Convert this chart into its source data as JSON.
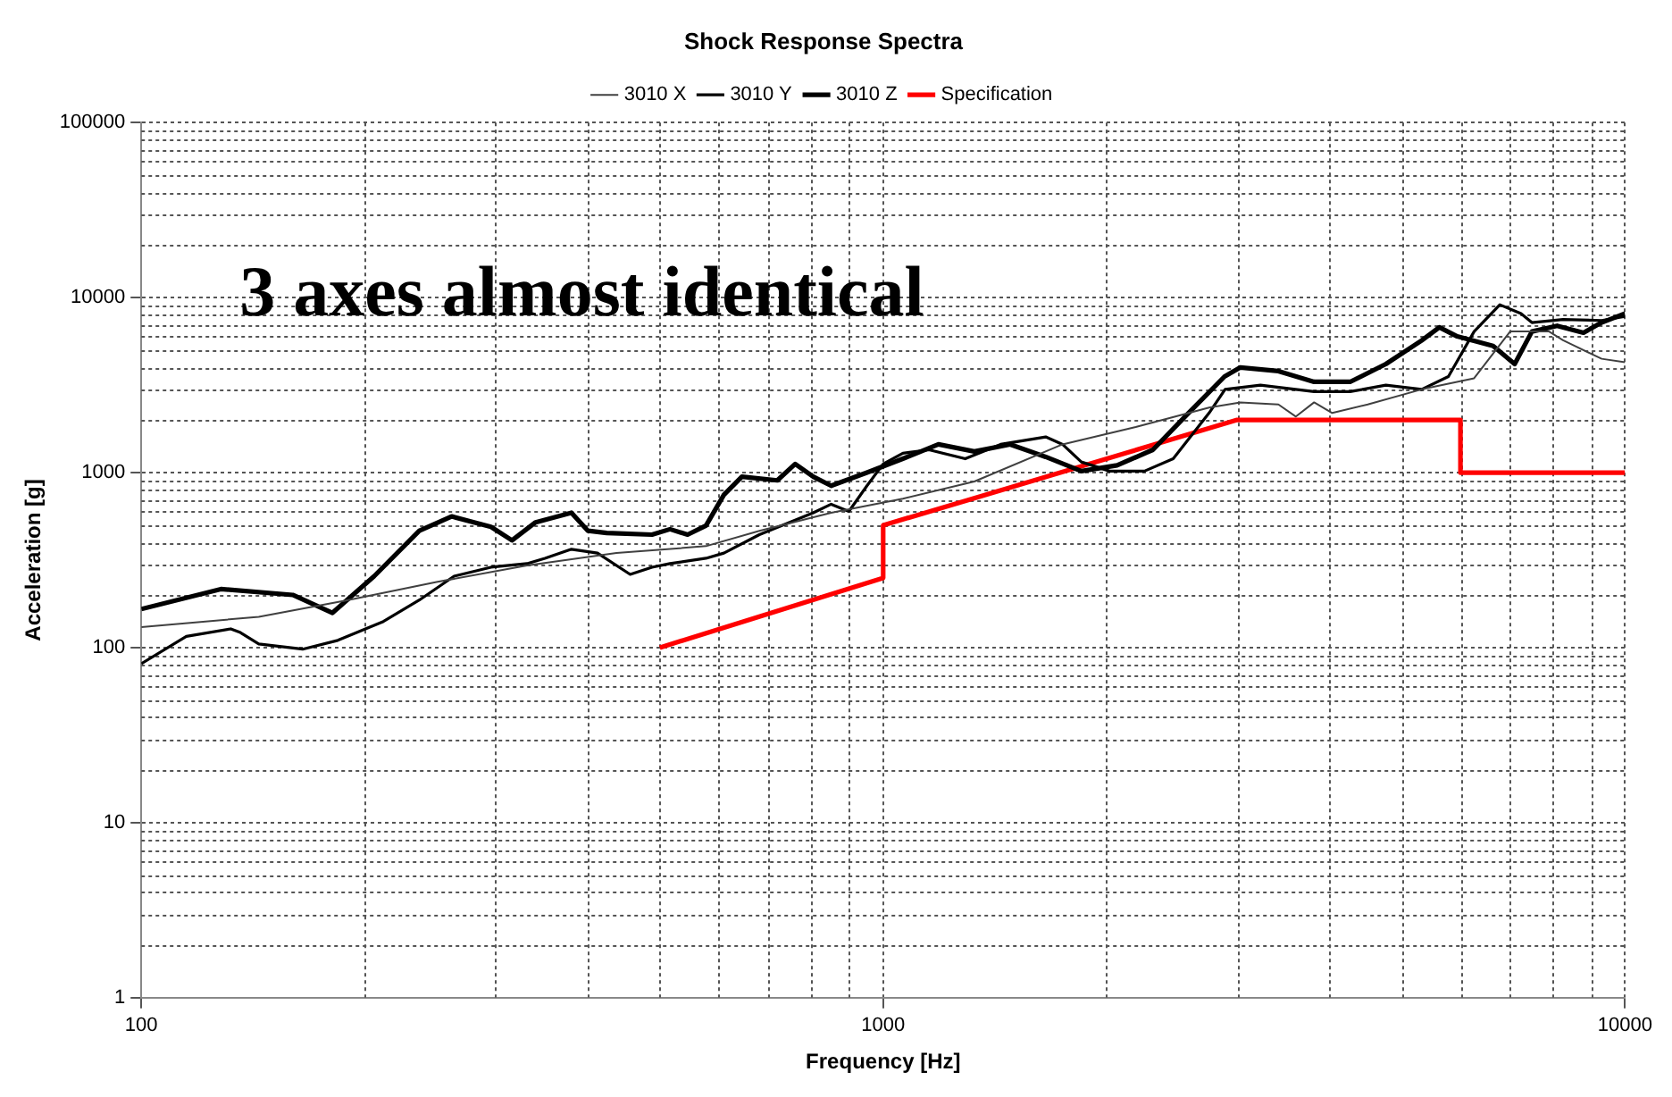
{
  "chart_data": {
    "type": "line",
    "title": "Shock Response Spectra",
    "xlabel": "Frequency [Hz]",
    "ylabel": "Acceleration [g]",
    "log": "xy",
    "grid": true,
    "legend": "top",
    "marker": "none",
    "line_style": "solid",
    "xlim": [
      100,
      10000
    ],
    "xticks": [
      100,
      1000,
      10000
    ],
    "ylim": [
      1,
      100000
    ],
    "yticks": [
      1,
      10,
      100,
      1000,
      10000,
      100000
    ],
    "annotations": [
      "3 axes almost identical"
    ],
    "series": [
      {
        "name": "3010 X",
        "color": "#404040",
        "x": [
          100,
          144,
          190,
          250,
          331,
          437,
          577,
          681,
          851,
          1063,
          1327,
          1745,
          2190,
          2750,
          3030,
          3410,
          3600,
          3810,
          4030,
          4500,
          5320,
          6260,
          7000,
          7900,
          8250,
          9300,
          10000
        ],
        "values": [
          131,
          150,
          187,
          237,
          295,
          347,
          380,
          465,
          590,
          710,
          890,
          1450,
          1820,
          2350,
          2520,
          2450,
          2090,
          2520,
          2190,
          2450,
          2990,
          3460,
          6400,
          6400,
          5700,
          4470,
          4270
        ]
      },
      {
        "name": "3010 Y",
        "color": "#000000",
        "x": [
          100,
          115,
          132,
          136,
          144,
          165,
          184,
          212,
          237,
          264,
          296,
          331,
          350,
          380,
          412,
          456,
          488,
          516,
          577,
          610,
          681,
          805,
          851,
          899,
          951,
          1000,
          1063,
          1153,
          1290,
          1440,
          1656,
          1745,
          1850,
          2020,
          2250,
          2460,
          2750,
          2890,
          3225,
          3810,
          4260,
          4760,
          5320,
          5780,
          6260,
          6780,
          7240,
          7490,
          8250,
          9300,
          10000
        ],
        "values": [
          81,
          116,
          128,
          122,
          105,
          98,
          110,
          141,
          187,
          256,
          288,
          302,
          324,
          365,
          347,
          262,
          288,
          302,
          324,
          347,
          442,
          590,
          660,
          600,
          841,
          1120,
          1290,
          1350,
          1200,
          1450,
          1600,
          1450,
          1150,
          1020,
          1020,
          1200,
          2190,
          2990,
          3160,
          2900,
          2900,
          3160,
          2990,
          3540,
          6400,
          9100,
          8100,
          7200,
          7500,
          7400,
          7800
        ]
      },
      {
        "name": "3010 Z",
        "color": "#000000",
        "x": [
          100,
          128,
          160,
          181,
          206,
          237,
          262,
          296,
          316,
          340,
          380,
          400,
          424,
          488,
          516,
          545,
          577,
          610,
          645,
          720,
          761,
          805,
          851,
          951,
          1063,
          1187,
          1327,
          1483,
          1656,
          1850,
          2067,
          2310,
          2580,
          2885,
          3030,
          3410,
          3810,
          4260,
          4760,
          5320,
          5620,
          5940,
          6640,
          7100,
          7490,
          8100,
          8790,
          9300,
          10000
        ],
        "values": [
          166,
          216,
          200,
          158,
          256,
          465,
          562,
          490,
          410,
          520,
          590,
          465,
          452,
          442,
          475,
          442,
          498,
          747,
          948,
          903,
          1120,
          948,
          841,
          1000,
          1200,
          1450,
          1320,
          1450,
          1230,
          1020,
          1100,
          1350,
          2190,
          3540,
          3990,
          3800,
          3300,
          3300,
          4170,
          5690,
          6760,
          6000,
          5300,
          4170,
          6400,
          6900,
          6300,
          7200,
          8100
        ]
      },
      {
        "name": "Specification",
        "color": "#ff0000",
        "x": [
          500,
          1000,
          1000,
          3000,
          6000,
          6000,
          10000
        ],
        "values": [
          100,
          250,
          500,
          2000,
          2000,
          1000,
          1000
        ]
      }
    ]
  }
}
